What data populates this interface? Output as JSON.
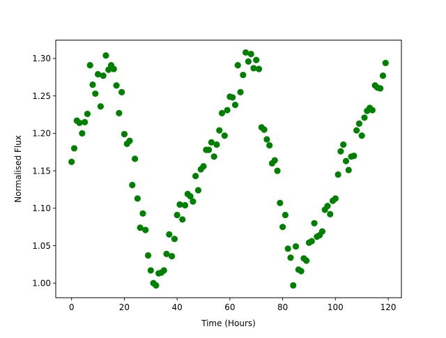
{
  "chart_data": {
    "type": "scatter",
    "xlabel": "Time (Hours)",
    "ylabel": "Normalised Flux",
    "xlim": [
      -6,
      125
    ],
    "ylim": [
      0.9805,
      1.3245
    ],
    "xticks": [
      0,
      20,
      40,
      60,
      80,
      100,
      120
    ],
    "yticks": [
      1.0,
      1.05,
      1.1,
      1.15,
      1.2,
      1.25,
      1.3
    ],
    "grid": false,
    "marker_color": "#008000",
    "series": [
      {
        "x": [
          0,
          1,
          2,
          3,
          4,
          5,
          6,
          7,
          8,
          9,
          10,
          11,
          12,
          13,
          14,
          15,
          16,
          17,
          18,
          19,
          20,
          21,
          22,
          23,
          24,
          25,
          26,
          27,
          28,
          29,
          30,
          31,
          32,
          33,
          34,
          35,
          36,
          37,
          38,
          39,
          40,
          41,
          42,
          43,
          44,
          45,
          46,
          47,
          48,
          49,
          50,
          51,
          52,
          53,
          54,
          55,
          56,
          57,
          58,
          59,
          60,
          61,
          62,
          63,
          64,
          65,
          66,
          67,
          68,
          69,
          70,
          71,
          72,
          73,
          74,
          75,
          76,
          77,
          78,
          79,
          80,
          81,
          82,
          83,
          84,
          85,
          86,
          87,
          88,
          89,
          90,
          91,
          92,
          93,
          94,
          95,
          96,
          97,
          98,
          99,
          100,
          101,
          102,
          103,
          104,
          105,
          106,
          107,
          108,
          109,
          110,
          111,
          112,
          113,
          114,
          115,
          116,
          117,
          118,
          119
        ],
        "y": [
          1.162,
          1.18,
          1.217,
          1.214,
          1.2,
          1.215,
          1.226,
          1.291,
          1.265,
          1.253,
          1.279,
          1.236,
          1.277,
          1.304,
          1.285,
          1.291,
          1.286,
          1.264,
          1.227,
          1.255,
          1.199,
          1.186,
          1.19,
          1.131,
          1.166,
          1.113,
          1.074,
          1.093,
          1.071,
          1.037,
          1.017,
          1.0,
          0.997,
          1.013,
          1.014,
          1.017,
          1.039,
          1.065,
          1.036,
          1.059,
          1.091,
          1.105,
          1.085,
          1.104,
          1.119,
          1.116,
          1.109,
          1.143,
          1.124,
          1.152,
          1.156,
          1.178,
          1.178,
          1.188,
          1.169,
          1.185,
          1.204,
          1.227,
          1.197,
          1.231,
          1.249,
          1.248,
          1.238,
          1.291,
          1.255,
          1.278,
          1.308,
          1.296,
          1.306,
          1.287,
          1.298,
          1.286,
          1.208,
          1.205,
          1.192,
          1.184,
          1.16,
          1.164,
          1.15,
          1.107,
          1.075,
          1.091,
          1.046,
          1.034,
          0.997,
          1.049,
          1.018,
          1.016,
          1.033,
          1.03,
          1.054,
          1.056,
          1.08,
          1.062,
          1.064,
          1.069,
          1.098,
          1.103,
          1.092,
          1.11,
          1.113,
          1.145,
          1.176,
          1.185,
          1.163,
          1.151,
          1.169,
          1.17,
          1.204,
          1.213,
          1.197,
          1.221,
          1.23,
          1.234,
          1.231,
          1.264,
          1.261,
          1.26,
          1.277,
          1.294
        ]
      }
    ]
  }
}
